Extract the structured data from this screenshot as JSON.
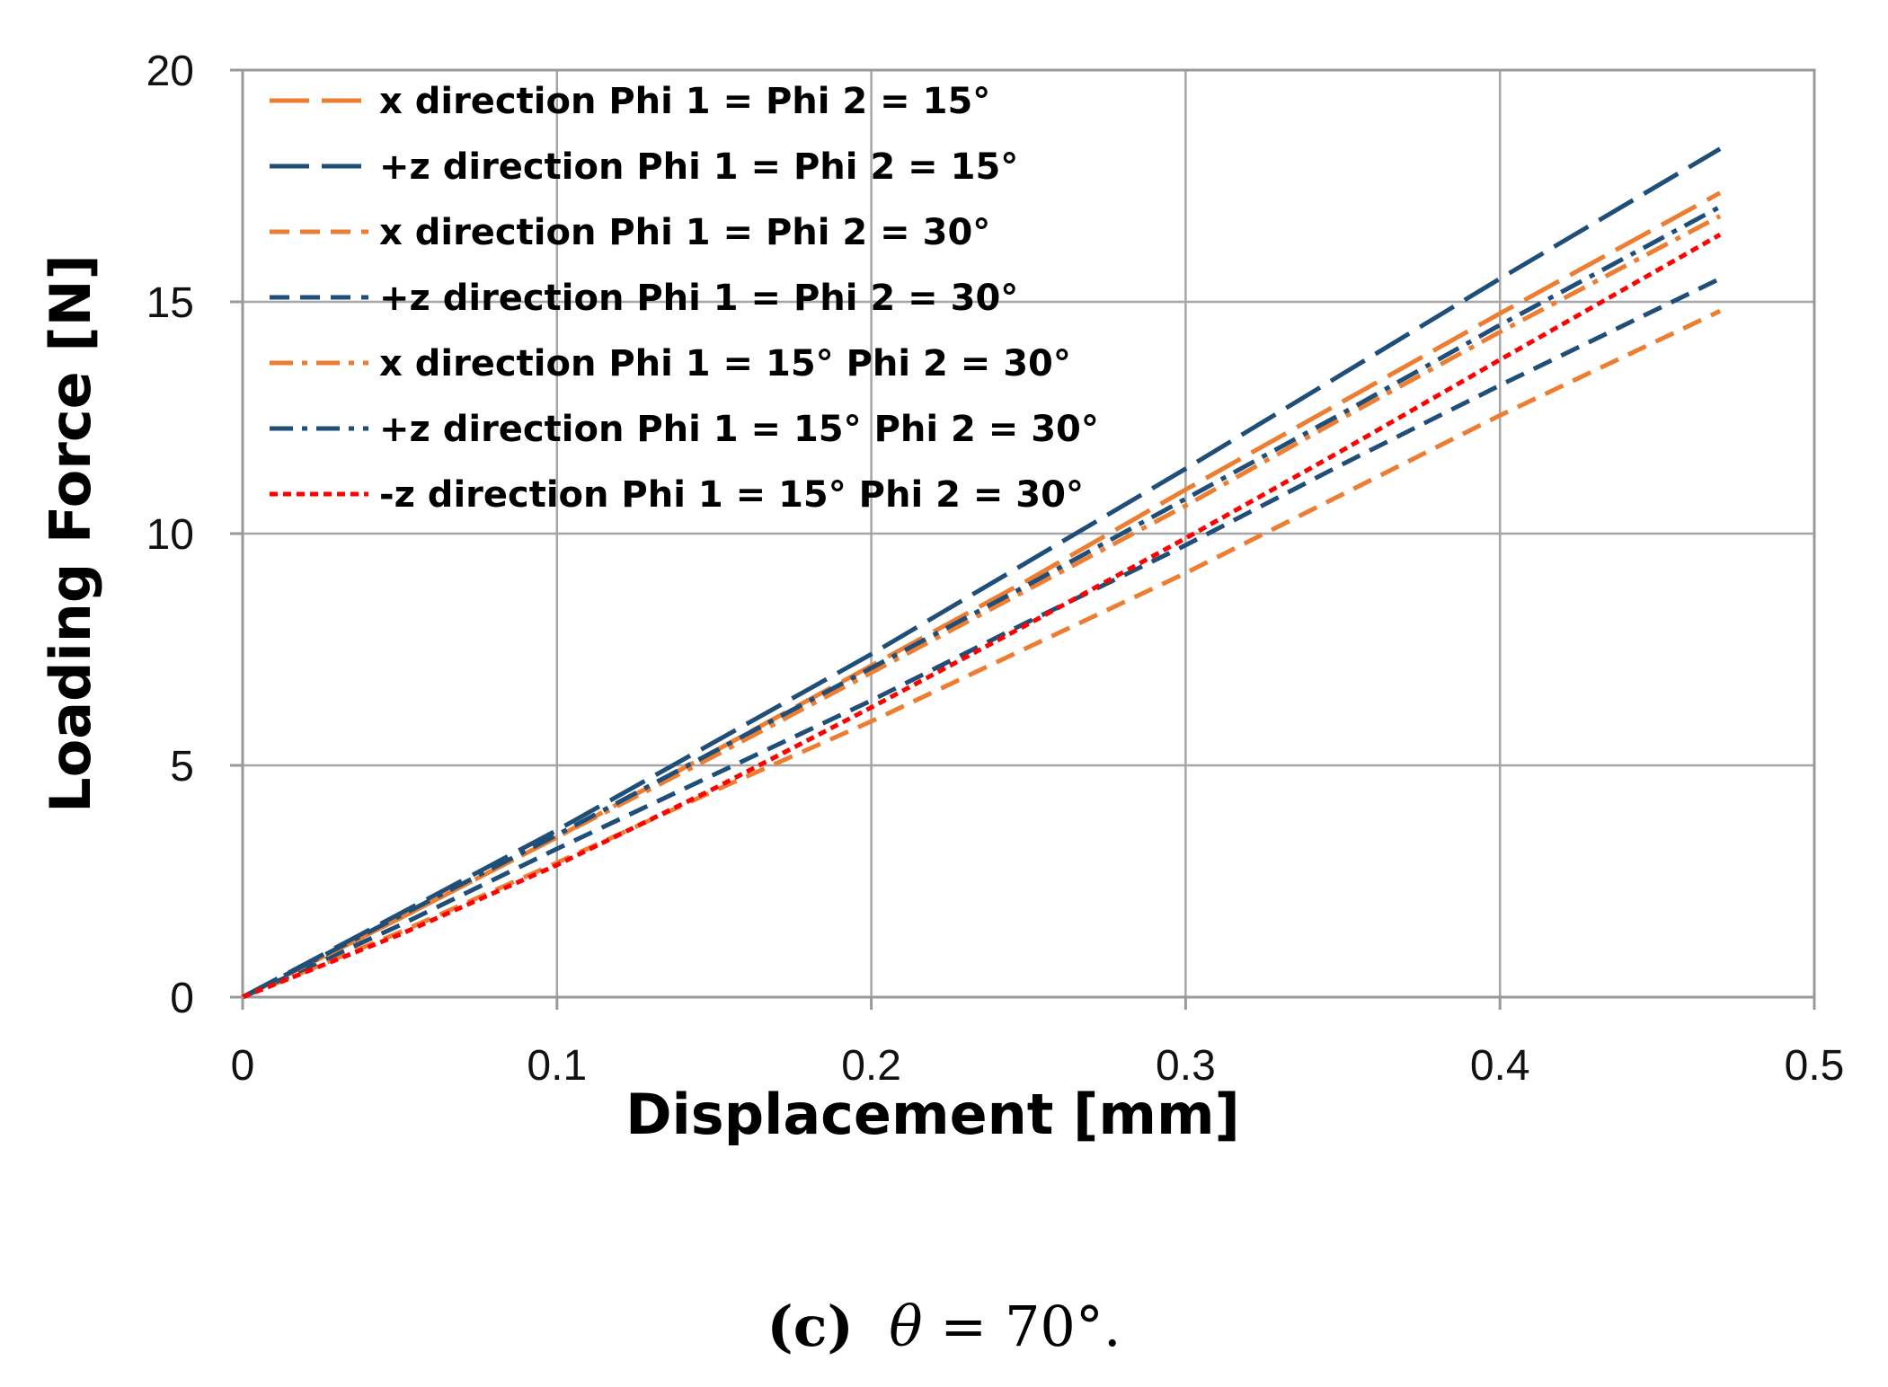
{
  "chart_data": {
    "type": "line",
    "title": "",
    "xlabel": "Displacement [mm]",
    "ylabel": "Loading Force [N]",
    "xlim": [
      0,
      0.5
    ],
    "ylim": [
      0,
      20
    ],
    "xticks": [
      "0",
      "0.1",
      "0.2",
      "0.3",
      "0.4",
      "0.5"
    ],
    "yticks": [
      "0",
      "5",
      "10",
      "15",
      "20"
    ],
    "grid": true,
    "legend_position": "top-left",
    "series": [
      {
        "name": "x direction   Phi 1 = Phi 2 = 15°",
        "color": "#ED7D31",
        "dash": "long-dash",
        "x": [
          0,
          0.05,
          0.1,
          0.15,
          0.2,
          0.25,
          0.3,
          0.35,
          0.4,
          0.47
        ],
        "y": [
          0,
          1.7,
          3.45,
          5.3,
          7.15,
          9.0,
          10.95,
          12.85,
          14.75,
          17.35
        ]
      },
      {
        "name": "+z direction   Phi 1 = Phi 2 = 15°",
        "color": "#1F4E79",
        "dash": "long-dash",
        "x": [
          0,
          0.05,
          0.1,
          0.15,
          0.2,
          0.25,
          0.3,
          0.35,
          0.4,
          0.47
        ],
        "y": [
          0,
          1.8,
          3.6,
          5.5,
          7.4,
          9.4,
          11.4,
          13.45,
          15.5,
          18.3
        ]
      },
      {
        "name": "x direction   Phi 1 = Phi 2 = 30°",
        "color": "#ED7D31",
        "dash": "dash",
        "x": [
          0,
          0.05,
          0.1,
          0.15,
          0.2,
          0.25,
          0.3,
          0.35,
          0.4,
          0.47
        ],
        "y": [
          0,
          1.4,
          2.9,
          4.45,
          5.95,
          7.55,
          9.15,
          10.85,
          12.55,
          14.8
        ]
      },
      {
        "name": "+z direction   Phi 1 = Phi 2 = 30°",
        "color": "#1F4E79",
        "dash": "dash",
        "x": [
          0,
          0.05,
          0.1,
          0.15,
          0.2,
          0.25,
          0.3,
          0.35,
          0.4,
          0.47
        ],
        "y": [
          0,
          1.55,
          3.2,
          4.8,
          6.4,
          8.1,
          9.75,
          11.5,
          13.2,
          15.5
        ]
      },
      {
        "name": "x direction   Phi 1 = 15°  Phi 2 = 30°",
        "color": "#ED7D31",
        "dash": "dash-dot",
        "x": [
          0,
          0.05,
          0.1,
          0.15,
          0.2,
          0.25,
          0.3,
          0.35,
          0.4,
          0.47
        ],
        "y": [
          0,
          1.7,
          3.45,
          5.2,
          7.0,
          8.8,
          10.6,
          12.5,
          14.35,
          16.85
        ]
      },
      {
        "name": "+z direction   Phi 1 = 15°  Phi 2 = 30°",
        "color": "#1F4E79",
        "dash": "dash-dot",
        "x": [
          0,
          0.05,
          0.1,
          0.15,
          0.2,
          0.25,
          0.3,
          0.35,
          0.4,
          0.47
        ],
        "y": [
          0,
          1.75,
          3.5,
          5.3,
          7.1,
          8.9,
          10.75,
          12.6,
          14.5,
          17.05
        ]
      },
      {
        "name": "-z direction   Phi 1 = 15°  Phi 2 = 30°",
        "color": "#FF0000",
        "dash": "short-dash",
        "x": [
          0,
          0.05,
          0.1,
          0.15,
          0.2,
          0.25,
          0.3,
          0.35,
          0.4,
          0.47
        ],
        "y": [
          0,
          1.35,
          2.85,
          4.5,
          6.25,
          8.05,
          9.9,
          11.8,
          13.75,
          16.45
        ]
      }
    ]
  },
  "caption": {
    "label": "(c)",
    "theta": "θ",
    "equation": " = 70°."
  }
}
